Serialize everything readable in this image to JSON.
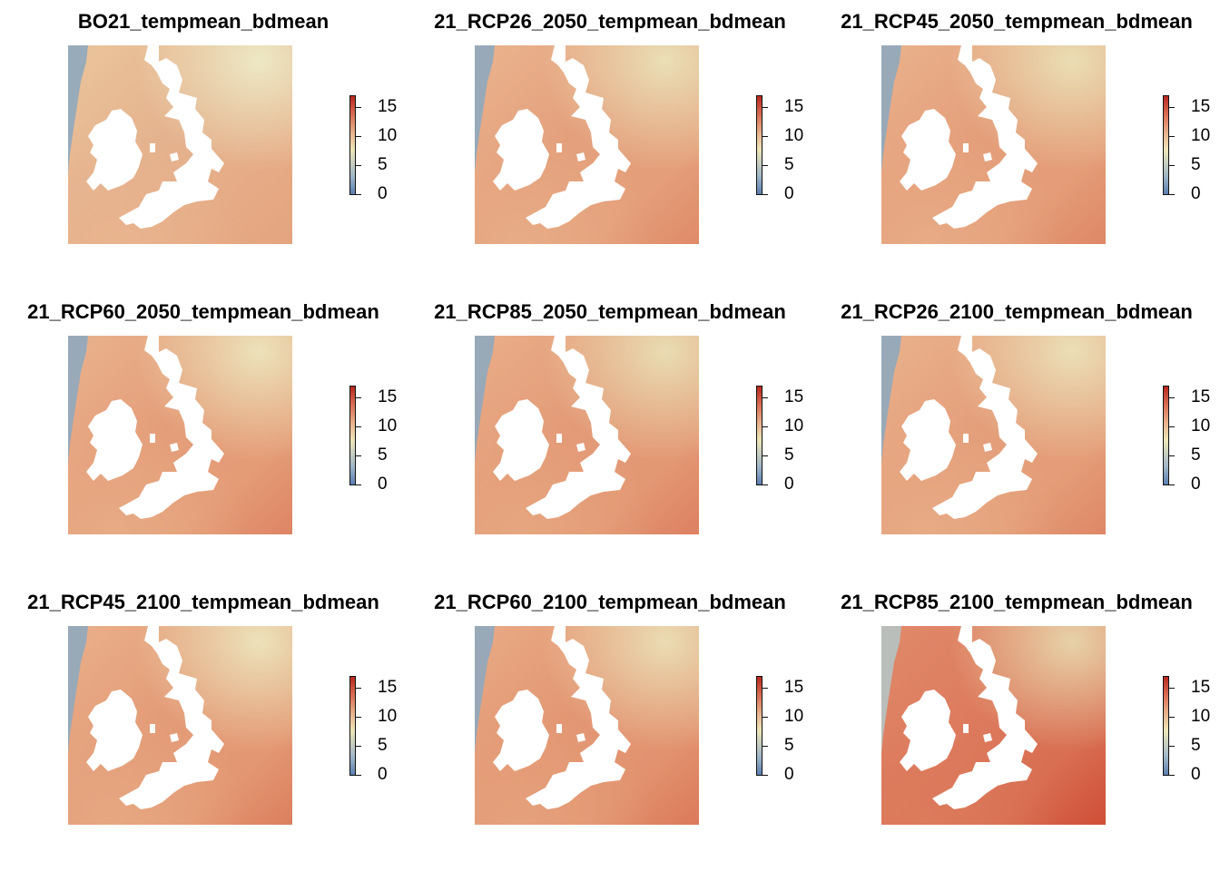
{
  "figure": {
    "layout": "3x3",
    "colormap": [
      "#5a7eb1",
      "#9fb6c7",
      "#ede6b8",
      "#e8b48e",
      "#d86b52",
      "#b72820"
    ],
    "land_color": "#ffffff",
    "panels": [
      {
        "title": "BO21_tempmean_bdmean",
        "legend": {
          "ticks": [
            "15",
            "10",
            "5",
            "0"
          ]
        },
        "colors": {
          "northwest": "#8fa9be",
          "northeast": "#ede8c4",
          "west": "#ebc59b",
          "southwest": "#e8b48f",
          "south": "#e6ab86",
          "southeast": "#e3a47e",
          "irish_sea": "#e4b28e"
        }
      },
      {
        "title": "21_RCP26_2050_tempmean_bdmean",
        "legend": {
          "ticks": [
            "15",
            "10",
            "5",
            "0"
          ]
        },
        "colors": {
          "northwest": "#8fa9be",
          "northeast": "#eadfb6",
          "west": "#eab48e",
          "southwest": "#e7ac86",
          "south": "#e49f7a",
          "southeast": "#df8a68",
          "irish_sea": "#e49f7c"
        }
      },
      {
        "title": "21_RCP45_2050_tempmean_bdmean",
        "legend": {
          "ticks": [
            "15",
            "10",
            "5",
            "0"
          ]
        },
        "colors": {
          "northwest": "#8fa9be",
          "northeast": "#eadeb4",
          "west": "#e9b28c",
          "southwest": "#e7ab85",
          "south": "#e49d78",
          "southeast": "#de8766",
          "irish_sea": "#e49e7a"
        }
      },
      {
        "title": "21_RCP60_2050_tempmean_bdmean",
        "legend": {
          "ticks": [
            "15",
            "10",
            "5",
            "0"
          ]
        },
        "colors": {
          "northwest": "#8fa9be",
          "northeast": "#ece2ba",
          "west": "#e9b38d",
          "southwest": "#e7ab85",
          "south": "#e49c77",
          "southeast": "#de8464",
          "irish_sea": "#e49d79"
        }
      },
      {
        "title": "21_RCP85_2050_tempmean_bdmean",
        "legend": {
          "ticks": [
            "15",
            "10",
            "5",
            "0"
          ]
        },
        "colors": {
          "northwest": "#8fa9be",
          "northeast": "#e9dcb2",
          "west": "#e9ae88",
          "southwest": "#e6a680",
          "south": "#e39874",
          "southeast": "#dd8061",
          "irish_sea": "#e39a77"
        }
      },
      {
        "title": "21_RCP26_2100_tempmean_bdmean",
        "legend": {
          "ticks": [
            "15",
            "10",
            "5",
            "0"
          ]
        },
        "colors": {
          "northwest": "#8fa9be",
          "northeast": "#ebdfb7",
          "west": "#e9b28c",
          "southwest": "#e7ab85",
          "south": "#e49d78",
          "southeast": "#de8766",
          "irish_sea": "#e49e7a"
        }
      },
      {
        "title": "21_RCP45_2100_tempmean_bdmean",
        "legend": {
          "ticks": [
            "15",
            "10",
            "5",
            "0"
          ]
        },
        "colors": {
          "northwest": "#8fa9be",
          "northeast": "#ece2ba",
          "west": "#e9b08a",
          "southwest": "#e6a882",
          "south": "#e39873",
          "southeast": "#dc7f5f",
          "irish_sea": "#e39b77"
        }
      },
      {
        "title": "21_RCP60_2100_tempmean_bdmean",
        "legend": {
          "ticks": [
            "15",
            "10",
            "5",
            "0"
          ]
        },
        "colors": {
          "northwest": "#8fa9be",
          "northeast": "#eadcb3",
          "west": "#e8aa84",
          "southwest": "#e5a27c",
          "south": "#e2926f",
          "southeast": "#db7a5a",
          "irish_sea": "#e39673"
        }
      },
      {
        "title": "21_RCP85_2100_tempmean_bdmean",
        "legend": {
          "ticks": [
            "15",
            "10",
            "5",
            "0"
          ]
        },
        "colors": {
          "northwest": "#b6c4c4",
          "northeast": "#e7d2a8",
          "west": "#e08a6a",
          "southwest": "#dc7a5c",
          "south": "#d86d51",
          "southeast": "#cf4e36",
          "irish_sea": "#dd7a5d"
        }
      }
    ]
  }
}
